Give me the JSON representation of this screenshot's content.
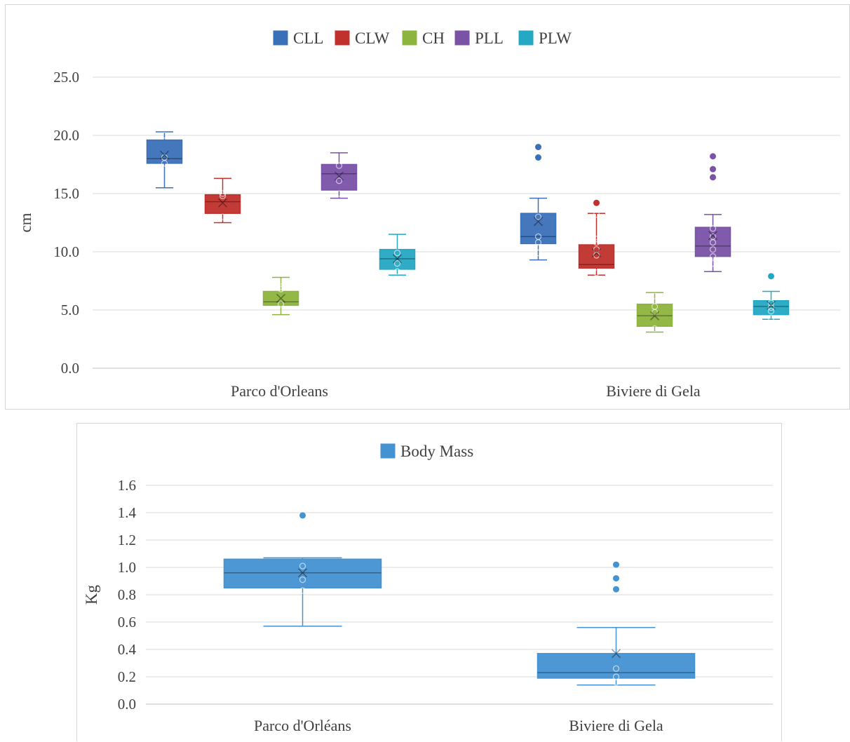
{
  "colors": {
    "CLL": "#3a70b8",
    "CLW": "#c0302c",
    "CH": "#8db43c",
    "PLL": "#7a52a6",
    "PLW": "#25a8c4",
    "BodyMass": "#4392d2"
  },
  "chart_data": [
    {
      "type": "boxplot",
      "ylabel": "cm",
      "ylim": [
        0,
        25
      ],
      "yticks": [
        "0.0",
        "5.0",
        "10.0",
        "15.0",
        "20.0",
        "25.0"
      ],
      "legend_position": "top-center",
      "categories": [
        "Parco d'Orleans",
        "Biviere di Gela"
      ],
      "series": [
        {
          "name": "CLL",
          "color_key": "CLL",
          "boxes": [
            {
              "whisker_low": 15.5,
              "q1": 17.6,
              "median": 18.0,
              "q3": 19.6,
              "whisker_high": 20.3,
              "mean": 18.3,
              "points": [
                17.6,
                18.1,
                20.0
              ],
              "outliers": []
            },
            {
              "whisker_low": 9.3,
              "q1": 10.7,
              "median": 11.3,
              "q3": 13.3,
              "whisker_high": 14.6,
              "mean": 12.6,
              "points": [
                9.9,
                10.4,
                10.8,
                11.3,
                13.0
              ],
              "outliers": [
                18.1,
                19.0
              ]
            }
          ]
        },
        {
          "name": "CLW",
          "color_key": "CLW",
          "boxes": [
            {
              "whisker_low": 12.5,
              "q1": 13.3,
              "median": 14.3,
              "q3": 14.9,
              "whisker_high": 16.3,
              "mean": 14.2,
              "points": [
                13.0,
                14.8,
                15.0
              ],
              "outliers": []
            },
            {
              "whisker_low": 8.0,
              "q1": 8.6,
              "median": 8.9,
              "q3": 10.6,
              "whisker_high": 13.3,
              "mean": 9.9,
              "points": [
                8.2,
                9.7,
                10.2,
                10.8,
                11.1,
                13.2
              ],
              "outliers": [
                14.2
              ]
            }
          ]
        },
        {
          "name": "CH",
          "color_key": "CH",
          "boxes": [
            {
              "whisker_low": 4.6,
              "q1": 5.4,
              "median": 5.7,
              "q3": 6.6,
              "whisker_high": 7.8,
              "mean": 6.0,
              "points": [
                5.5,
                6.8,
                7.0
              ],
              "outliers": []
            },
            {
              "whisker_low": 3.1,
              "q1": 3.6,
              "median": 4.5,
              "q3": 5.5,
              "whisker_high": 6.5,
              "mean": 4.5,
              "points": [
                3.4,
                4.8,
                5.3,
                6.2
              ],
              "outliers": []
            }
          ]
        },
        {
          "name": "PLL",
          "color_key": "PLL",
          "boxes": [
            {
              "whisker_low": 14.6,
              "q1": 15.3,
              "median": 16.7,
              "q3": 17.5,
              "whisker_high": 18.5,
              "mean": 16.5,
              "points": [
                15.0,
                16.1,
                17.4
              ],
              "outliers": []
            },
            {
              "whisker_low": 8.3,
              "q1": 9.6,
              "median": 10.5,
              "q3": 12.1,
              "whisker_high": 13.2,
              "mean": 11.4,
              "points": [
                9.0,
                9.6,
                10.2,
                10.8,
                11.3,
                12.0
              ],
              "outliers": [
                16.4,
                17.1,
                18.2
              ]
            }
          ]
        },
        {
          "name": "PLW",
          "color_key": "PLW",
          "boxes": [
            {
              "whisker_low": 8.0,
              "q1": 8.5,
              "median": 9.4,
              "q3": 10.2,
              "whisker_high": 11.5,
              "mean": 9.4,
              "points": [
                8.3,
                9.0,
                9.9
              ],
              "outliers": []
            },
            {
              "whisker_low": 4.2,
              "q1": 4.6,
              "median": 5.3,
              "q3": 5.8,
              "whisker_high": 6.6,
              "mean": 5.4,
              "points": [
                4.3,
                4.9,
                5.2,
                5.6
              ],
              "outliers": [
                7.9
              ]
            }
          ]
        }
      ]
    },
    {
      "type": "boxplot",
      "ylabel": "Kg",
      "ylim": [
        0,
        1.6
      ],
      "yticks": [
        "0.0",
        "0.2",
        "0.4",
        "0.6",
        "0.8",
        "1.0",
        "1.2",
        "1.4",
        "1.6"
      ],
      "legend_position": "top-center",
      "categories": [
        "Parco d'Orléans",
        "Biviere di Gela"
      ],
      "series": [
        {
          "name": "Body Mass",
          "color_key": "BodyMass",
          "boxes": [
            {
              "whisker_low": 0.57,
              "q1": 0.85,
              "median": 0.96,
              "q3": 1.06,
              "whisker_high": 1.07,
              "mean": 0.96,
              "points": [
                0.83,
                0.91,
                1.01
              ],
              "outliers": [
                1.38
              ]
            },
            {
              "whisker_low": 0.14,
              "q1": 0.19,
              "median": 0.23,
              "q3": 0.37,
              "whisker_high": 0.56,
              "mean": 0.37,
              "points": [
                0.16,
                0.2,
                0.26
              ],
              "outliers": [
                0.84,
                0.92,
                1.02
              ]
            }
          ]
        }
      ]
    }
  ]
}
